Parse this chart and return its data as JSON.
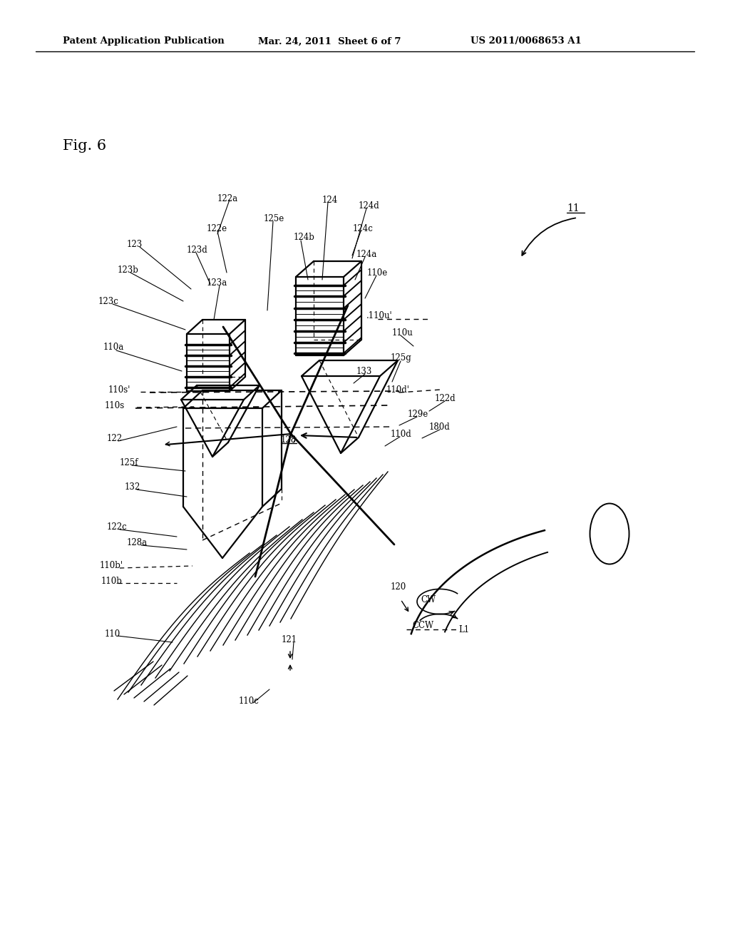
{
  "title_left": "Patent Application Publication",
  "title_mid": "Mar. 24, 2011  Sheet 6 of 7",
  "title_right": "US 2011/0068653 A1",
  "fig_label": "Fig. 6",
  "bg_color": "#ffffff",
  "lc": "#000000",
  "tc": "#000000"
}
